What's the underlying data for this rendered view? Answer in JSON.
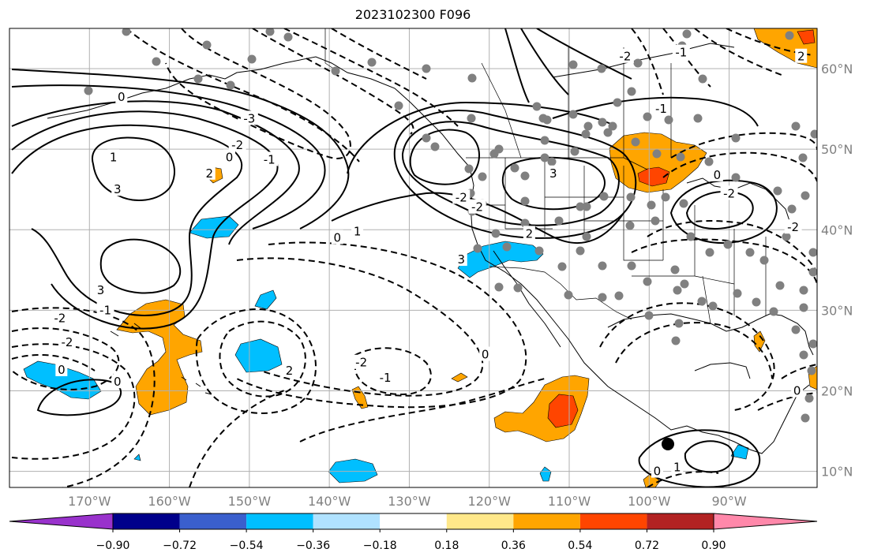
{
  "title": "2023102300 F096",
  "map": {
    "lon_range": [
      -180,
      -79
    ],
    "lat_range": [
      8,
      65
    ],
    "lat_labels": [
      "10°N",
      "20°N",
      "30°N",
      "40°N",
      "50°N",
      "60°N"
    ],
    "lat_values": [
      10,
      20,
      30,
      40,
      50,
      60
    ],
    "lon_labels": [
      "170°W",
      "160°W",
      "150°W",
      "140°W",
      "130°W",
      "120°W",
      "110°W",
      "100°W",
      "90°W"
    ],
    "lon_values": [
      -170,
      -160,
      -150,
      -140,
      -130,
      -120,
      -110,
      -100,
      -90
    ],
    "gridlines": true,
    "contour_labels": [
      {
        "text": "0",
        "lon": -173.5,
        "lat": 22.6
      },
      {
        "text": "0",
        "lon": -166.5,
        "lat": 21.1
      },
      {
        "text": "-2",
        "lon": -172.8,
        "lat": 26.0
      },
      {
        "text": "-2",
        "lon": -173.7,
        "lat": 29.0
      },
      {
        "text": "-1",
        "lon": -168.0,
        "lat": 30.0
      },
      {
        "text": "3",
        "lon": -166.5,
        "lat": 45.0
      },
      {
        "text": "3",
        "lon": -168.6,
        "lat": 32.5
      },
      {
        "text": "1",
        "lon": -167.0,
        "lat": 49.0
      },
      {
        "text": "0",
        "lon": -166.0,
        "lat": 56.5
      },
      {
        "text": "2",
        "lon": -155.0,
        "lat": 47.0
      },
      {
        "text": "0",
        "lon": -152.5,
        "lat": 49.0
      },
      {
        "text": "-2",
        "lon": -151.5,
        "lat": 50.5
      },
      {
        "text": "-1",
        "lon": -147.5,
        "lat": 48.7
      },
      {
        "text": "-3",
        "lon": -150.0,
        "lat": 53.8
      },
      {
        "text": "0",
        "lon": -139.0,
        "lat": 39.0
      },
      {
        "text": "1",
        "lon": -136.5,
        "lat": 39.8
      },
      {
        "text": "2",
        "lon": -145.0,
        "lat": 22.5
      },
      {
        "text": "-2",
        "lon": -136.0,
        "lat": 23.5
      },
      {
        "text": "-1",
        "lon": -133.0,
        "lat": 21.6
      },
      {
        "text": "0",
        "lon": -120.5,
        "lat": 24.5
      },
      {
        "text": "3",
        "lon": -123.5,
        "lat": 36.3
      },
      {
        "text": "-2",
        "lon": -123.5,
        "lat": 44.0
      },
      {
        "text": "-2",
        "lon": -121.5,
        "lat": 42.8
      },
      {
        "text": "3",
        "lon": -112.0,
        "lat": 47.0
      },
      {
        "text": "2",
        "lon": -115.0,
        "lat": 39.5
      },
      {
        "text": "-2",
        "lon": -103.0,
        "lat": 61.5
      },
      {
        "text": "-1",
        "lon": -98.5,
        "lat": 55.0
      },
      {
        "text": "-1",
        "lon": -96.0,
        "lat": 62.0
      },
      {
        "text": "2",
        "lon": -81.0,
        "lat": 61.5
      },
      {
        "text": "0",
        "lon": -91.5,
        "lat": 46.8
      },
      {
        "text": "-2",
        "lon": -90.0,
        "lat": 44.5
      },
      {
        "text": "-2",
        "lon": -82.0,
        "lat": 40.3
      },
      {
        "text": "0",
        "lon": -81.5,
        "lat": 20.0
      },
      {
        "text": "1",
        "lon": -96.5,
        "lat": 10.5
      },
      {
        "text": "0",
        "lon": -99.0,
        "lat": 10.0
      }
    ]
  },
  "colorbar": {
    "labels": [
      "−0.90",
      "−0.72",
      "−0.54",
      "−0.36",
      "−0.18",
      "0.18",
      "0.36",
      "0.54",
      "0.72",
      "0.90"
    ],
    "values": [
      -0.9,
      -0.72,
      -0.54,
      -0.36,
      -0.18,
      0.18,
      0.36,
      0.54,
      0.72,
      0.9
    ],
    "colors": [
      "#9932cc",
      "#00008b",
      "#3a5fcd",
      "#00bfff",
      "#b0e2ff",
      "#ffffff",
      "#ffe88a",
      "#ffa500",
      "#ff4500",
      "#b22222",
      "#ff88aa"
    ]
  }
}
